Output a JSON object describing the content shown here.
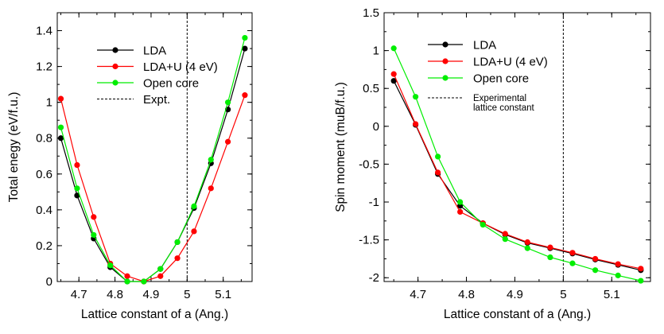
{
  "chart_data": [
    {
      "type": "line",
      "xlabel": "Lattice constant of a (Ang.)",
      "ylabel": "Total enegy (eV/f.u.)",
      "xlim": [
        4.64,
        5.18
      ],
      "ylim": [
        0,
        1.5
      ],
      "x_ticks": [
        4.7,
        4.8,
        4.9,
        5,
        5.1
      ],
      "x_tick_labels": [
        "4.7",
        "4.8",
        "4.9",
        "5",
        "5.1"
      ],
      "y_ticks": [
        0,
        0.2,
        0.4,
        0.6,
        0.8,
        1,
        1.2,
        1.4
      ],
      "y_tick_labels": [
        "0",
        "0.2",
        "0.4",
        "0.6",
        "0.8",
        "1",
        "1.2",
        "1.4"
      ],
      "grid": false,
      "legend_position": "top-center",
      "series": [
        {
          "name": "LDA",
          "color": "#000000",
          "x": [
            4.65,
            4.695,
            4.741,
            4.787,
            4.834,
            4.88,
            4.926,
            4.973,
            5.019,
            5.066,
            5.113,
            5.16
          ],
          "y": [
            0.8,
            0.48,
            0.24,
            0.08,
            0.0,
            0.0,
            0.07,
            0.22,
            0.41,
            0.66,
            0.96,
            1.3
          ]
        },
        {
          "name": "LDA+U (4 eV)",
          "color": "#ff0000",
          "x": [
            4.65,
            4.695,
            4.741,
            4.787,
            4.834,
            4.88,
            4.926,
            4.973,
            5.019,
            5.066,
            5.113,
            5.16
          ],
          "y": [
            1.02,
            0.65,
            0.36,
            0.1,
            0.03,
            0.0,
            0.03,
            0.13,
            0.28,
            0.52,
            0.78,
            1.04
          ]
        },
        {
          "name": "Open core",
          "color": "#00ee00",
          "x": [
            4.65,
            4.695,
            4.741,
            4.787,
            4.834,
            4.88,
            4.926,
            4.973,
            5.019,
            5.066,
            5.113,
            5.16
          ],
          "y": [
            0.86,
            0.52,
            0.26,
            0.09,
            0.0,
            0.0,
            0.07,
            0.22,
            0.42,
            0.68,
            1.0,
            1.36
          ]
        }
      ],
      "reference_line": {
        "name": "Expt.",
        "x": 5.0
      }
    },
    {
      "type": "line",
      "xlabel": "Lattice constant of a (Ang.)",
      "ylabel": "Spin moment (muB/f.u.)",
      "xlim": [
        4.63,
        5.18
      ],
      "ylim": [
        -2.05,
        1.5
      ],
      "x_ticks": [
        4.7,
        4.8,
        4.9,
        5,
        5.1
      ],
      "x_tick_labels": [
        "4.7",
        "4.8",
        "4.9",
        "5",
        "5.1"
      ],
      "y_ticks": [
        1.5,
        1,
        0.5,
        0,
        -0.5,
        -1,
        -1.5,
        -2
      ],
      "y_tick_labels": [
        "1.5",
        "1",
        "0.5",
        "0",
        "-0.5",
        "-1",
        "-1.5",
        "-2"
      ],
      "grid": false,
      "legend_position": "top-center",
      "series": [
        {
          "name": "LDA",
          "color": "#000000",
          "x": [
            4.65,
            4.695,
            4.741,
            4.787,
            4.834,
            4.88,
            4.926,
            4.973,
            5.019,
            5.066,
            5.113,
            5.16
          ],
          "y": [
            0.6,
            0.02,
            -0.63,
            -1.05,
            -1.28,
            -1.43,
            -1.54,
            -1.61,
            -1.68,
            -1.76,
            -1.83,
            -1.9
          ]
        },
        {
          "name": "LDA+U (4 eV)",
          "color": "#ff0000",
          "x": [
            4.65,
            4.695,
            4.741,
            4.787,
            4.834,
            4.88,
            4.926,
            4.973,
            5.019,
            5.066,
            5.113,
            5.16
          ],
          "y": [
            0.69,
            0.03,
            -0.61,
            -1.13,
            -1.28,
            -1.42,
            -1.53,
            -1.6,
            -1.67,
            -1.75,
            -1.82,
            -1.88
          ]
        },
        {
          "name": "Open core",
          "color": "#00ee00",
          "x": [
            4.65,
            4.695,
            4.741,
            4.787,
            4.834,
            4.88,
            4.926,
            4.973,
            5.019,
            5.066,
            5.113,
            5.16
          ],
          "y": [
            1.03,
            0.39,
            -0.4,
            -1.0,
            -1.3,
            -1.49,
            -1.61,
            -1.73,
            -1.81,
            -1.9,
            -1.97,
            -2.04
          ]
        }
      ],
      "reference_line": {
        "name": "Experimental\nlattice constant",
        "x": 5.0
      }
    }
  ]
}
